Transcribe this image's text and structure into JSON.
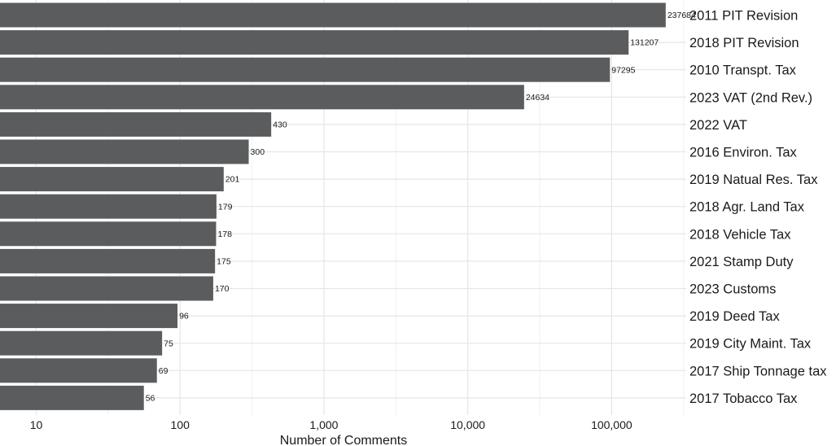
{
  "chart_data": {
    "type": "bar",
    "orientation": "horizontal",
    "x_scale": "log10",
    "xlim": [
      5.6,
      330000
    ],
    "categories": [
      "2011 PIT Revision",
      "2018 PIT Revision",
      "2010 Transpt. Tax",
      "2023 VAT (2nd Rev.)",
      "2022 VAT",
      "2016 Environ. Tax",
      "2019 Natual Res. Tax",
      "2018 Agr. Land Tax",
      "2018 Vehicle Tax",
      "2021 Stamp Duty",
      "2023 Customs",
      "2019 Deed Tax",
      "2019 City Maint. Tax",
      "2017 Ship Tonnage tax",
      "2017 Tobacco Tax"
    ],
    "values": [
      237684,
      131207,
      97295,
      24634,
      430,
      300,
      201,
      179,
      178,
      175,
      170,
      96,
      75,
      69,
      56
    ],
    "value_labels": [
      "237684",
      "131207",
      "97295",
      "24634",
      "430",
      "300",
      "201",
      "179",
      "178",
      "175",
      "170",
      "96",
      "75",
      "69",
      "56"
    ],
    "x_ticks": [
      10,
      100,
      1000,
      10000,
      100000
    ],
    "x_tick_labels": [
      "10",
      "100",
      "1,000",
      "10,000",
      "100,000"
    ],
    "xlabel": "Number of Comments",
    "ylabel": "",
    "title": "",
    "grid": true,
    "legend": "none",
    "colors": {
      "bar": "#5b5c5e",
      "grid_major": "#e6e6e6",
      "grid_minor": "#f2f2f2",
      "text": "#1a1a1a",
      "background": "#ffffff"
    }
  }
}
